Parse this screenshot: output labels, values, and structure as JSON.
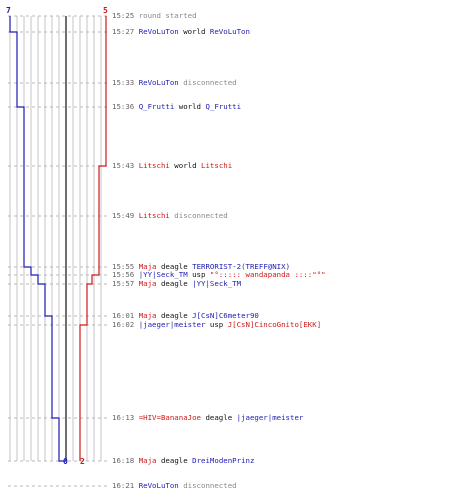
{
  "scores": {
    "blue_start": "7",
    "red_start": "5",
    "blue_end": "0",
    "red_end": "2"
  },
  "colors": {
    "blue_team": "#1c1cb4",
    "red_team": "#d01818",
    "grid": "#c4c4c4",
    "center": "#6e6e6e"
  },
  "events": [
    {
      "time": "15:25",
      "parts": [
        {
          "text": "round started",
          "color": "gray"
        }
      ]
    },
    {
      "time": "15:27",
      "parts": [
        {
          "text": "ReVoLuTon",
          "color": "blue"
        },
        {
          "text": " world ",
          "color": "black"
        },
        {
          "text": "ReVoLuTon",
          "color": "blue"
        }
      ]
    },
    {
      "time": "15:33",
      "parts": [
        {
          "text": "ReVoLuTon",
          "color": "blue"
        },
        {
          "text": " disconnected",
          "color": "gray"
        }
      ]
    },
    {
      "time": "15:36",
      "parts": [
        {
          "text": "Q_Frutti",
          "color": "blue"
        },
        {
          "text": " world ",
          "color": "black"
        },
        {
          "text": "Q_Frutti",
          "color": "blue"
        }
      ]
    },
    {
      "time": "15:43",
      "parts": [
        {
          "text": "Litschi",
          "color": "red"
        },
        {
          "text": " world ",
          "color": "black"
        },
        {
          "text": "Litschi",
          "color": "red"
        }
      ]
    },
    {
      "time": "15:49",
      "parts": [
        {
          "text": "Litschi",
          "color": "red"
        },
        {
          "text": " disconnected",
          "color": "gray"
        }
      ]
    },
    {
      "time": "15:55",
      "parts": [
        {
          "text": "Maja",
          "color": "red"
        },
        {
          "text": " deagle ",
          "color": "black"
        },
        {
          "text": "TERRORIST-2(TREFF@NIX)",
          "color": "blue"
        }
      ]
    },
    {
      "time": "15:56",
      "parts": [
        {
          "text": "|YY|Seck_TM",
          "color": "blue"
        },
        {
          "text": " usp ",
          "color": "black"
        },
        {
          "text": "\"°::::: wandapanda ::::\"°\"",
          "color": "red"
        }
      ]
    },
    {
      "time": "15:57",
      "parts": [
        {
          "text": "Maja",
          "color": "red"
        },
        {
          "text": " deagle ",
          "color": "black"
        },
        {
          "text": "|YY|Seck_TM",
          "color": "blue"
        }
      ]
    },
    {
      "time": "16:01",
      "parts": [
        {
          "text": "Maja",
          "color": "red"
        },
        {
          "text": " deagle ",
          "color": "black"
        },
        {
          "text": "J[CsN]C6meter90",
          "color": "blue"
        }
      ]
    },
    {
      "time": "16:02",
      "parts": [
        {
          "text": "|jaeger|meister",
          "color": "blue"
        },
        {
          "text": " usp ",
          "color": "black"
        },
        {
          "text": "J[CsN]CincoGnito[EKK]",
          "color": "red"
        }
      ]
    },
    {
      "time": "16:13",
      "parts": [
        {
          "text": "=HIV=BananaJoe",
          "color": "red"
        },
        {
          "text": " deagle ",
          "color": "black"
        },
        {
          "text": "|jaeger|meister",
          "color": "blue"
        }
      ]
    },
    {
      "time": "16:18",
      "parts": [
        {
          "text": "Maja",
          "color": "red"
        },
        {
          "text": " deagle ",
          "color": "black"
        },
        {
          "text": "DreiModenPrinz",
          "color": "blue"
        }
      ]
    },
    {
      "time": "16:21",
      "parts": [
        {
          "text": "ReVoLuTon",
          "color": "blue"
        },
        {
          "text": " disconnected",
          "color": "gray"
        }
      ]
    }
  ]
}
